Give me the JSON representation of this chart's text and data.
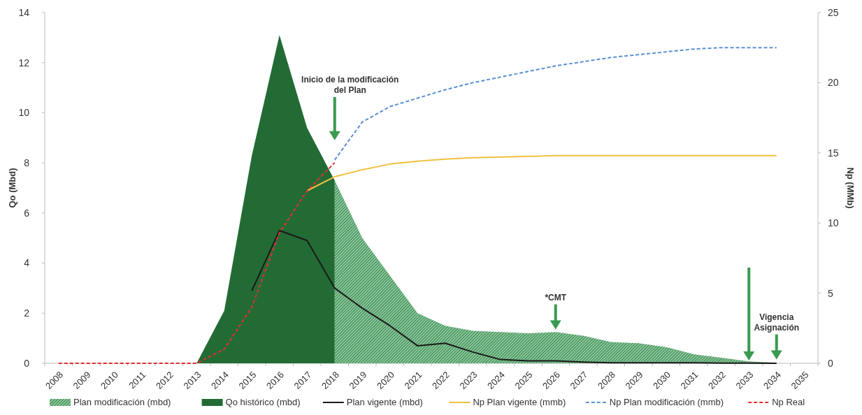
{
  "chart_data": {
    "type": "area",
    "categories": [
      "2008",
      "2009",
      "2010",
      "2011",
      "2012",
      "2013",
      "2014",
      "2015",
      "2016",
      "2017",
      "2018",
      "2019",
      "2020",
      "2021",
      "2022",
      "2023",
      "2024",
      "2025",
      "2026",
      "2027",
      "2028",
      "2029",
      "2030",
      "2031",
      "2032",
      "2033",
      "2034",
      "2035"
    ],
    "ylabel": "Qo (Mbd)",
    "y2label": "Np (MMb)",
    "ylim": [
      0,
      14
    ],
    "yticks": [
      0,
      2,
      4,
      6,
      8,
      10,
      12,
      14
    ],
    "y2lim": [
      0,
      25
    ],
    "y2ticks": [
      0,
      5,
      10,
      15,
      20,
      25
    ],
    "grid": false,
    "legend": "bottom",
    "marker": "none",
    "series": [
      {
        "name": "Plan modificación  (mbd)",
        "color": "#2f8a4a",
        "values": [
          null,
          null,
          null,
          null,
          null,
          null,
          null,
          null,
          null,
          null,
          7.3,
          5.0,
          3.5,
          2.0,
          1.5,
          1.3,
          1.25,
          1.2,
          1.25,
          1.1,
          0.85,
          0.8,
          0.65,
          0.36,
          0.22,
          0.08,
          0.02,
          null
        ]
      },
      {
        "name": "Qo histórico (mbd)",
        "color": "#236b35",
        "values": [
          null,
          null,
          null,
          null,
          null,
          0,
          2.1,
          8.3,
          13.1,
          9.4,
          7.3,
          null,
          null,
          null,
          null,
          null,
          null,
          null,
          null,
          null,
          null,
          null,
          null,
          null,
          null,
          null,
          null,
          null
        ]
      },
      {
        "name": "Plan vigente  (mbd)",
        "type": "line",
        "color": "#1a1a1a",
        "line_style": "solid",
        "values": [
          null,
          null,
          null,
          null,
          null,
          null,
          null,
          2.9,
          5.3,
          4.9,
          3.0,
          2.2,
          1.5,
          0.7,
          0.8,
          0.45,
          0.15,
          0.1,
          0.1,
          0.05,
          0.02,
          0.02,
          0.02,
          0.02,
          0.01,
          0.01,
          0,
          null
        ]
      },
      {
        "name": "Np Plan vigente (mmb)",
        "type": "line",
        "axis": "y2",
        "color": "#f0c040",
        "line_style": "solid",
        "values": [
          null,
          null,
          null,
          null,
          null,
          null,
          null,
          null,
          null,
          12.3,
          13.3,
          13.8,
          14.2,
          14.4,
          14.55,
          14.65,
          14.7,
          14.75,
          14.8,
          14.8,
          14.8,
          14.8,
          14.8,
          14.8,
          14.8,
          14.8,
          14.8,
          null
        ]
      },
      {
        "name": "Np Plan modificación (mmb)",
        "type": "line",
        "axis": "y2",
        "color": "#5b8fd6",
        "line_style": "dashed",
        "values": [
          null,
          null,
          null,
          null,
          null,
          null,
          null,
          null,
          null,
          null,
          14.5,
          17.2,
          18.3,
          18.9,
          19.5,
          20.0,
          20.4,
          20.8,
          21.2,
          21.5,
          21.8,
          22.0,
          22.2,
          22.4,
          22.5,
          22.5,
          22.5,
          null
        ]
      },
      {
        "name": "Np Real",
        "type": "line",
        "axis": "y2",
        "color": "#e03030",
        "line_style": "dashed",
        "values": [
          0,
          0,
          0,
          0,
          0,
          0,
          1.0,
          4.0,
          9.3,
          12.3,
          14.3,
          null,
          null,
          null,
          null,
          null,
          null,
          null,
          null,
          null,
          null,
          null,
          null,
          null,
          null,
          null,
          null,
          null
        ]
      }
    ],
    "annotations": [
      "Inicio  de la modificación\ndel Plan",
      "*CMT",
      "Vigencia\nAsignación"
    ]
  }
}
